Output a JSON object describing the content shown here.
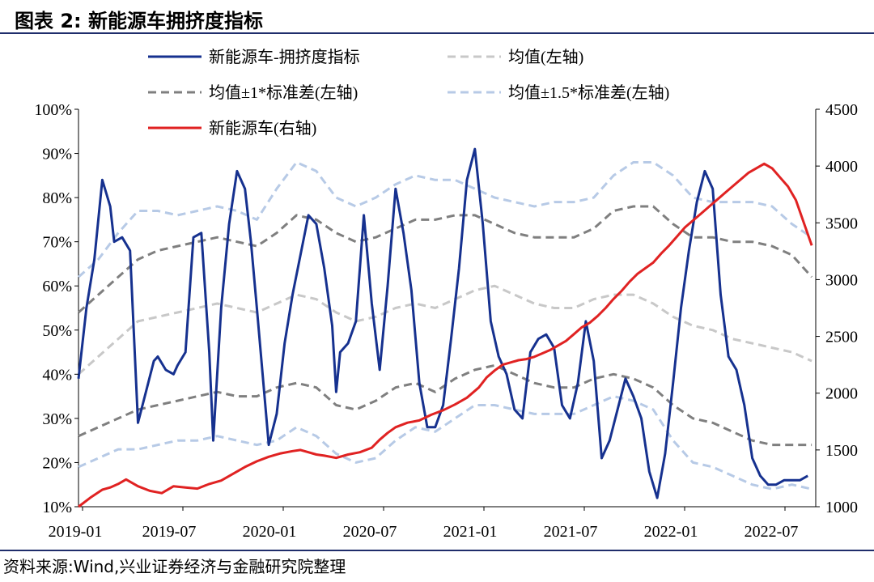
{
  "figure": {
    "title": "图表 2:  新能源车拥挤度指标",
    "source": "资料来源:Wind,兴业证券经济与金融研究院整理"
  },
  "colors": {
    "crowd": "#16318f",
    "mean": "#c8c8c8",
    "band1": "#7f7f7f",
    "band15": "#b7cae6",
    "nev": "#e02222"
  },
  "chart_data": {
    "type": "line",
    "xlabel": "",
    "ylabel_left": "",
    "ylabel_right": "",
    "x_ticks": [
      "2019-01",
      "2019-07",
      "2020-01",
      "2020-07",
      "2021-01",
      "2021-07",
      "2022-01",
      "2022-07"
    ],
    "x_range": [
      2019.0,
      2022.72
    ],
    "y_left": {
      "range": [
        10,
        100
      ],
      "ticks": [
        "10%",
        "20%",
        "30%",
        "40%",
        "50%",
        "60%",
        "70%",
        "80%",
        "90%",
        "100%"
      ],
      "unit": "%"
    },
    "y_right": {
      "range": [
        1000,
        4500
      ],
      "ticks": [
        "1000",
        "1500",
        "2000",
        "2500",
        "3000",
        "3500",
        "4000",
        "4500"
      ]
    },
    "legend": [
      {
        "label": "新能源车-拥挤度指标",
        "style": "solid",
        "color_key": "crowd"
      },
      {
        "label": "均值(左轴)",
        "style": "dashed",
        "color_key": "mean"
      },
      {
        "label": "均值±1*标准差(左轴)",
        "style": "dashed",
        "color_key": "band1"
      },
      {
        "label": "均值±1.5*标准差(左轴)",
        "style": "dashed",
        "color_key": "band15"
      },
      {
        "label": "新能源车(右轴)",
        "style": "solid",
        "color_key": "nev"
      }
    ],
    "series": [
      {
        "name": "新能源车-拥挤度指标",
        "axis": "left",
        "color_key": "crowd",
        "x": [
          2019.0,
          2019.04,
          2019.08,
          2019.12,
          2019.16,
          2019.18,
          2019.22,
          2019.26,
          2019.3,
          2019.34,
          2019.38,
          2019.4,
          2019.44,
          2019.48,
          2019.5,
          2019.54,
          2019.58,
          2019.62,
          2019.66,
          2019.68,
          2019.72,
          2019.76,
          2019.8,
          2019.84,
          2019.87,
          2019.9,
          2019.96,
          2020.0,
          2020.04,
          2020.08,
          2020.12,
          2020.16,
          2020.2,
          2020.24,
          2020.28,
          2020.3,
          2020.32,
          2020.36,
          2020.4,
          2020.44,
          2020.48,
          2020.52,
          2020.56,
          2020.6,
          2020.64,
          2020.68,
          2020.72,
          2020.76,
          2020.8,
          2020.84,
          2020.88,
          2020.92,
          2020.96,
          2021.0,
          2021.04,
          2021.08,
          2021.12,
          2021.16,
          2021.2,
          2021.24,
          2021.28,
          2021.32,
          2021.36,
          2021.4,
          2021.44,
          2021.48,
          2021.52,
          2021.56,
          2021.6,
          2021.64,
          2021.68,
          2021.72,
          2021.76,
          2021.8,
          2021.84,
          2021.88,
          2021.92,
          2021.96,
          2022.0,
          2022.04,
          2022.08,
          2022.12,
          2022.16,
          2022.2,
          2022.24,
          2022.28,
          2022.32,
          2022.36,
          2022.4,
          2022.44,
          2022.48,
          2022.52,
          2022.56,
          2022.6,
          2022.64,
          2022.68
        ],
        "values": [
          39,
          55,
          66,
          84,
          78,
          70,
          71,
          68,
          29,
          36,
          43,
          44,
          41,
          40,
          42,
          45,
          71,
          72,
          45,
          25,
          55,
          74,
          86,
          82,
          70,
          55,
          24,
          31,
          47,
          58,
          67,
          76,
          74,
          64,
          51,
          36,
          45,
          47,
          52,
          76,
          56,
          41,
          60,
          82,
          72,
          59,
          38,
          28,
          28,
          33,
          48,
          64,
          84,
          91,
          74,
          52,
          44,
          40,
          32,
          30,
          45,
          48,
          49,
          46,
          33,
          30,
          38,
          52,
          43,
          21,
          25,
          32,
          39,
          35,
          30,
          18,
          12,
          22,
          38,
          55,
          68,
          79,
          86,
          82,
          58,
          44,
          41,
          33,
          21,
          17,
          15,
          15,
          16,
          16,
          16,
          17
        ]
      },
      {
        "name": "均值(左轴)",
        "axis": "left",
        "color_key": "mean",
        "x": [
          2019.0,
          2019.1,
          2019.2,
          2019.3,
          2019.4,
          2019.5,
          2019.6,
          2019.7,
          2019.8,
          2019.9,
          2020.0,
          2020.1,
          2020.2,
          2020.3,
          2020.4,
          2020.5,
          2020.6,
          2020.7,
          2020.8,
          2020.9,
          2021.0,
          2021.1,
          2021.2,
          2021.3,
          2021.4,
          2021.5,
          2021.6,
          2021.7,
          2021.8,
          2021.9,
          2022.0,
          2022.1,
          2022.2,
          2022.3,
          2022.4,
          2022.5,
          2022.6,
          2022.7
        ],
        "values": [
          40,
          44,
          48,
          52,
          53,
          54,
          55,
          56,
          55,
          54,
          56,
          58,
          57,
          54,
          52,
          53,
          55,
          56,
          55,
          57,
          59,
          60,
          58,
          56,
          55,
          55,
          57,
          58,
          58,
          56,
          53,
          51,
          50,
          48,
          47,
          46,
          45,
          43
        ]
      },
      {
        "name": "均值+1*标准差(左轴)",
        "axis": "left",
        "color_key": "band1",
        "x": [
          2019.0,
          2019.1,
          2019.2,
          2019.3,
          2019.4,
          2019.5,
          2019.6,
          2019.7,
          2019.8,
          2019.9,
          2020.0,
          2020.1,
          2020.2,
          2020.3,
          2020.4,
          2020.5,
          2020.6,
          2020.7,
          2020.8,
          2020.9,
          2021.0,
          2021.1,
          2021.2,
          2021.3,
          2021.4,
          2021.5,
          2021.6,
          2021.7,
          2021.8,
          2021.9,
          2022.0,
          2022.1,
          2022.2,
          2022.3,
          2022.4,
          2022.5,
          2022.6,
          2022.7
        ],
        "values": [
          54,
          58,
          62,
          66,
          68,
          69,
          70,
          71,
          70,
          69,
          72,
          76,
          75,
          72,
          70,
          71,
          73,
          75,
          75,
          76,
          76,
          74,
          72,
          71,
          71,
          71,
          73,
          77,
          78,
          78,
          74,
          71,
          71,
          70,
          70,
          69,
          67,
          62
        ]
      },
      {
        "name": "均值-1*标准差(左轴)",
        "axis": "left",
        "color_key": "band1",
        "x": [
          2019.0,
          2019.1,
          2019.2,
          2019.3,
          2019.4,
          2019.5,
          2019.6,
          2019.7,
          2019.8,
          2019.9,
          2020.0,
          2020.1,
          2020.2,
          2020.3,
          2020.4,
          2020.5,
          2020.6,
          2020.7,
          2020.8,
          2020.9,
          2021.0,
          2021.1,
          2021.2,
          2021.3,
          2021.4,
          2021.5,
          2021.6,
          2021.7,
          2021.8,
          2021.9,
          2022.0,
          2022.1,
          2022.2,
          2022.3,
          2022.4,
          2022.5,
          2022.6,
          2022.7
        ],
        "values": [
          26,
          28,
          30,
          32,
          33,
          34,
          35,
          36,
          35,
          35,
          37,
          38,
          37,
          33,
          32,
          34,
          37,
          38,
          36,
          39,
          41,
          42,
          40,
          38,
          37,
          37,
          39,
          40,
          39,
          37,
          33,
          30,
          29,
          27,
          25,
          24,
          24,
          24
        ]
      },
      {
        "name": "均值+1.5*标准差(左轴)",
        "axis": "left",
        "color_key": "band15",
        "x": [
          2019.0,
          2019.1,
          2019.2,
          2019.3,
          2019.4,
          2019.5,
          2019.6,
          2019.7,
          2019.8,
          2019.9,
          2020.0,
          2020.1,
          2020.2,
          2020.3,
          2020.4,
          2020.5,
          2020.6,
          2020.7,
          2020.8,
          2020.9,
          2021.0,
          2021.1,
          2021.2,
          2021.3,
          2021.4,
          2021.5,
          2021.6,
          2021.7,
          2021.8,
          2021.9,
          2022.0,
          2022.1,
          2022.2,
          2022.3,
          2022.4,
          2022.5,
          2022.6,
          2022.7
        ],
        "values": [
          62,
          66,
          72,
          77,
          77,
          76,
          77,
          78,
          77,
          75,
          82,
          88,
          86,
          80,
          78,
          80,
          83,
          85,
          84,
          84,
          82,
          80,
          79,
          78,
          79,
          79,
          80,
          85,
          88,
          88,
          85,
          80,
          79,
          79,
          79,
          78,
          74,
          71
        ]
      },
      {
        "name": "均值-1.5*标准差(左轴)",
        "axis": "left",
        "color_key": "band15",
        "x": [
          2019.0,
          2019.1,
          2019.2,
          2019.3,
          2019.4,
          2019.5,
          2019.6,
          2019.7,
          2019.8,
          2019.9,
          2020.0,
          2020.1,
          2020.2,
          2020.3,
          2020.4,
          2020.5,
          2020.6,
          2020.7,
          2020.8,
          2020.9,
          2021.0,
          2021.1,
          2021.2,
          2021.3,
          2021.4,
          2021.5,
          2021.6,
          2021.7,
          2021.8,
          2021.9,
          2022.0,
          2022.1,
          2022.2,
          2022.3,
          2022.4,
          2022.5,
          2022.6,
          2022.7
        ],
        "values": [
          19,
          21,
          23,
          23,
          24,
          25,
          25,
          26,
          25,
          24,
          25,
          28,
          26,
          22,
          20,
          21,
          25,
          28,
          27,
          30,
          33,
          33,
          32,
          31,
          31,
          31,
          33,
          35,
          34,
          32,
          25,
          20,
          19,
          17,
          15,
          14,
          15,
          14
        ]
      },
      {
        "name": "新能源车(右轴)",
        "axis": "right",
        "color_key": "nev",
        "x": [
          2019.0,
          2019.06,
          2019.12,
          2019.16,
          2019.2,
          2019.24,
          2019.3,
          2019.36,
          2019.42,
          2019.48,
          2019.54,
          2019.6,
          2019.66,
          2019.72,
          2019.78,
          2019.84,
          2019.9,
          2019.96,
          2020.02,
          2020.08,
          2020.12,
          2020.16,
          2020.2,
          2020.24,
          2020.3,
          2020.36,
          2020.42,
          2020.48,
          2020.52,
          2020.56,
          2020.6,
          2020.66,
          2020.72,
          2020.78,
          2020.84,
          2020.9,
          2020.96,
          2021.02,
          2021.06,
          2021.1,
          2021.14,
          2021.18,
          2021.22,
          2021.26,
          2021.3,
          2021.34,
          2021.38,
          2021.42,
          2021.46,
          2021.5,
          2021.54,
          2021.58,
          2021.62,
          2021.66,
          2021.7,
          2021.74,
          2021.78,
          2021.82,
          2021.86,
          2021.9,
          2021.94,
          2021.98,
          2022.02,
          2022.06,
          2022.1,
          2022.14,
          2022.18,
          2022.22,
          2022.26,
          2022.3,
          2022.34,
          2022.38,
          2022.42,
          2022.46,
          2022.5,
          2022.54,
          2022.58,
          2022.62,
          2022.66,
          2022.7
        ],
        "values": [
          1000,
          1080,
          1150,
          1170,
          1200,
          1240,
          1180,
          1140,
          1120,
          1180,
          1170,
          1160,
          1200,
          1230,
          1290,
          1350,
          1400,
          1440,
          1470,
          1490,
          1500,
          1480,
          1460,
          1450,
          1430,
          1460,
          1480,
          1520,
          1590,
          1650,
          1700,
          1740,
          1760,
          1810,
          1850,
          1900,
          1960,
          2050,
          2140,
          2200,
          2250,
          2270,
          2290,
          2300,
          2320,
          2350,
          2380,
          2420,
          2460,
          2520,
          2580,
          2620,
          2680,
          2750,
          2830,
          2900,
          2980,
          3050,
          3100,
          3150,
          3230,
          3300,
          3380,
          3460,
          3520,
          3580,
          3640,
          3700,
          3760,
          3820,
          3880,
          3940,
          3980,
          4020,
          3980,
          3900,
          3820,
          3700,
          3500,
          3300
        ]
      }
    ]
  }
}
